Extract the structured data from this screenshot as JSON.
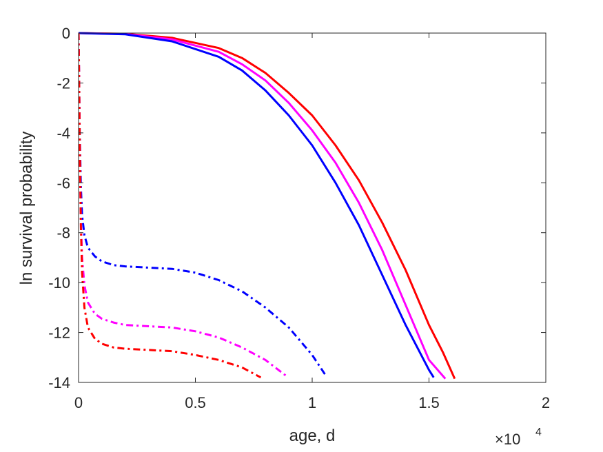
{
  "chart_data": {
    "type": "line",
    "xlabel": "age, d",
    "ylabel": "ln survival probability",
    "x_exponent_base": "×10",
    "x_exponent_power": "4",
    "xlim": [
      0,
      20000
    ],
    "ylim": [
      -14,
      0
    ],
    "xticks": [
      {
        "value": 0,
        "label": "0"
      },
      {
        "value": 5000,
        "label": "0.5"
      },
      {
        "value": 10000,
        "label": "1"
      },
      {
        "value": 15000,
        "label": "1.5"
      },
      {
        "value": 20000,
        "label": "2"
      }
    ],
    "yticks": [
      {
        "value": 0,
        "label": "0"
      },
      {
        "value": -2,
        "label": "-2"
      },
      {
        "value": -4,
        "label": "-4"
      },
      {
        "value": -6,
        "label": "-6"
      },
      {
        "value": -8,
        "label": "-8"
      },
      {
        "value": -10,
        "label": "-10"
      },
      {
        "value": -12,
        "label": "-12"
      },
      {
        "value": -14,
        "label": "-14"
      }
    ],
    "grid": false,
    "legend": "none",
    "series": [
      {
        "color": "#ff0000",
        "style": "solid",
        "x": [
          0,
          2000,
          4000,
          6000,
          7000,
          8000,
          9000,
          10000,
          11000,
          12000,
          13000,
          14000,
          15000,
          15600,
          16100
        ],
        "y": [
          0,
          -0.03,
          -0.19,
          -0.6,
          -1.0,
          -1.6,
          -2.4,
          -3.3,
          -4.5,
          -5.9,
          -7.6,
          -9.5,
          -11.7,
          -12.8,
          -13.85
        ]
      },
      {
        "color": "#ff00ff",
        "style": "solid",
        "x": [
          0,
          2000,
          4000,
          6000,
          7000,
          8000,
          9000,
          10000,
          11000,
          12000,
          13000,
          14000,
          15000,
          15700
        ],
        "y": [
          0,
          -0.04,
          -0.25,
          -0.75,
          -1.25,
          -1.9,
          -2.8,
          -3.9,
          -5.2,
          -6.8,
          -8.7,
          -10.9,
          -13.1,
          -13.85
        ]
      },
      {
        "color": "#0000ff",
        "style": "solid",
        "x": [
          0,
          2000,
          4000,
          6000,
          7000,
          8000,
          9000,
          10000,
          11000,
          12000,
          13000,
          14000,
          15000,
          15200
        ],
        "y": [
          0,
          -0.05,
          -0.33,
          -0.95,
          -1.5,
          -2.3,
          -3.3,
          -4.5,
          -6.0,
          -7.7,
          -9.7,
          -11.7,
          -13.5,
          -13.8
        ]
      },
      {
        "color": "#0000ff",
        "style": "dashdot",
        "x": [
          0,
          20,
          50,
          100,
          150,
          250,
          400,
          700,
          1000,
          1500,
          2000,
          3000,
          4000,
          5000,
          6000,
          7000,
          8000,
          9000,
          10000,
          10600
        ],
        "y": [
          0,
          -1.5,
          -4.0,
          -6.2,
          -7.3,
          -8.1,
          -8.6,
          -8.95,
          -9.15,
          -9.3,
          -9.35,
          -9.4,
          -9.45,
          -9.6,
          -9.9,
          -10.35,
          -11.0,
          -11.8,
          -12.9,
          -13.75
        ]
      },
      {
        "color": "#ff00ff",
        "style": "dashdot",
        "x": [
          0,
          20,
          50,
          100,
          150,
          250,
          400,
          700,
          1000,
          1500,
          2000,
          3000,
          4000,
          5000,
          6000,
          7000,
          8000,
          8900
        ],
        "y": [
          0,
          -1.5,
          -4.5,
          -7.5,
          -9.0,
          -10.1,
          -10.8,
          -11.25,
          -11.45,
          -11.6,
          -11.7,
          -11.75,
          -11.8,
          -11.95,
          -12.2,
          -12.6,
          -13.1,
          -13.75
        ]
      },
      {
        "color": "#ff0000",
        "style": "dashdot",
        "x": [
          0,
          20,
          50,
          100,
          150,
          250,
          400,
          700,
          1000,
          1500,
          2000,
          3000,
          4000,
          5000,
          6000,
          7000,
          7800
        ],
        "y": [
          0,
          -1.5,
          -4.5,
          -7.8,
          -9.6,
          -11.0,
          -11.8,
          -12.25,
          -12.45,
          -12.6,
          -12.65,
          -12.7,
          -12.75,
          -12.9,
          -13.1,
          -13.4,
          -13.8
        ]
      }
    ]
  }
}
